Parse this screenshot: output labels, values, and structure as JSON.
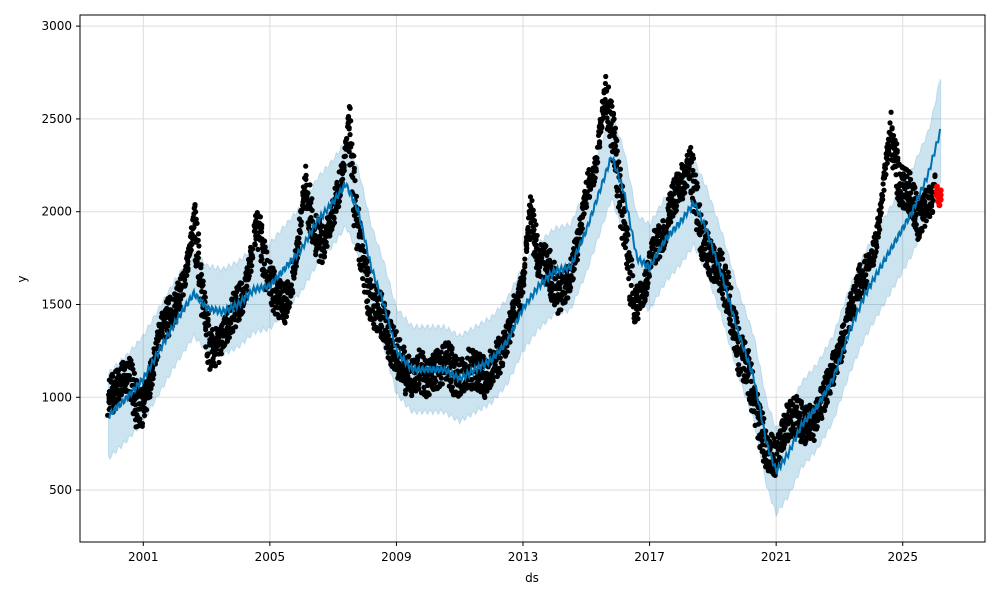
{
  "chart_data": {
    "type": "line",
    "title": "",
    "xlabel": "ds",
    "ylabel": "y",
    "xlim": [
      1999.0,
      2027.6
    ],
    "ylim": [
      220,
      3060
    ],
    "xticks": [
      "2001",
      "2005",
      "2009",
      "2013",
      "2017",
      "2021",
      "2025"
    ],
    "yticks": [
      "500",
      "1000",
      "1500",
      "2000",
      "2500",
      "3000"
    ],
    "grid": true,
    "colors": {
      "observed": "#000000",
      "forecast_line": "#0072B2",
      "interval": "#0072B2",
      "future_actual": "#ff0000"
    },
    "uncertainty_halfwidth": 230,
    "yhat": [
      [
        1999.9,
        900
      ],
      [
        2000.5,
        1000
      ],
      [
        2001,
        1100
      ],
      [
        2001.5,
        1250
      ],
      [
        2002,
        1400
      ],
      [
        2002.6,
        1560
      ],
      [
        2003,
        1480
      ],
      [
        2003.5,
        1460
      ],
      [
        2004,
        1500
      ],
      [
        2004.5,
        1580
      ],
      [
        2005,
        1600
      ],
      [
        2005.5,
        1700
      ],
      [
        2006,
        1800
      ],
      [
        2006.5,
        1950
      ],
      [
        2007,
        2050
      ],
      [
        2007.4,
        2150
      ],
      [
        2007.8,
        2000
      ],
      [
        2008.2,
        1700
      ],
      [
        2008.6,
        1500
      ],
      [
        2009,
        1250
      ],
      [
        2009.5,
        1150
      ],
      [
        2010,
        1150
      ],
      [
        2010.5,
        1150
      ],
      [
        2011,
        1100
      ],
      [
        2011.5,
        1150
      ],
      [
        2012,
        1200
      ],
      [
        2012.5,
        1300
      ],
      [
        2013,
        1480
      ],
      [
        2013.5,
        1600
      ],
      [
        2014,
        1680
      ],
      [
        2014.5,
        1700
      ],
      [
        2015,
        1900
      ],
      [
        2015.5,
        2150
      ],
      [
        2015.8,
        2300
      ],
      [
        2016.2,
        2100
      ],
      [
        2016.6,
        1750
      ],
      [
        2017,
        1700
      ],
      [
        2017.5,
        1850
      ],
      [
        2018,
        1950
      ],
      [
        2018.4,
        2050
      ],
      [
        2018.8,
        1900
      ],
      [
        2019.3,
        1650
      ],
      [
        2019.8,
        1350
      ],
      [
        2020.3,
        1100
      ],
      [
        2020.7,
        750
      ],
      [
        2021,
        600
      ],
      [
        2021.4,
        700
      ],
      [
        2021.8,
        850
      ],
      [
        2022.3,
        950
      ],
      [
        2022.8,
        1100
      ],
      [
        2023.3,
        1350
      ],
      [
        2023.8,
        1550
      ],
      [
        2024.3,
        1700
      ],
      [
        2024.8,
        1850
      ],
      [
        2025.3,
        2000
      ],
      [
        2025.8,
        2200
      ],
      [
        2026.2,
        2440
      ]
    ],
    "observed": [
      [
        1999.9,
        1000
      ],
      [
        2000.2,
        1050
      ],
      [
        2000.4,
        1150
      ],
      [
        2000.6,
        1100
      ],
      [
        2000.8,
        950
      ],
      [
        2001.0,
        950
      ],
      [
        2001.3,
        1150
      ],
      [
        2001.6,
        1400
      ],
      [
        2001.9,
        1450
      ],
      [
        2002.3,
        1600
      ],
      [
        2002.6,
        1950
      ],
      [
        2002.9,
        1500
      ],
      [
        2003.1,
        1250
      ],
      [
        2003.5,
        1300
      ],
      [
        2003.8,
        1450
      ],
      [
        2004.2,
        1550
      ],
      [
        2004.6,
        1950
      ],
      [
        2004.9,
        1650
      ],
      [
        2005.2,
        1550
      ],
      [
        2005.5,
        1500
      ],
      [
        2005.8,
        1700
      ],
      [
        2006.1,
        2150
      ],
      [
        2006.4,
        1900
      ],
      [
        2006.7,
        1800
      ],
      [
        2007.0,
        2000
      ],
      [
        2007.3,
        2200
      ],
      [
        2007.5,
        2500
      ],
      [
        2007.7,
        2000
      ],
      [
        2007.9,
        1750
      ],
      [
        2008.2,
        1500
      ],
      [
        2008.5,
        1450
      ],
      [
        2008.8,
        1300
      ],
      [
        2009.1,
        1200
      ],
      [
        2009.4,
        1100
      ],
      [
        2009.7,
        1150
      ],
      [
        2010.0,
        1100
      ],
      [
        2010.3,
        1150
      ],
      [
        2010.6,
        1200
      ],
      [
        2010.9,
        1100
      ],
      [
        2011.2,
        1150
      ],
      [
        2011.5,
        1150
      ],
      [
        2011.8,
        1100
      ],
      [
        2012.1,
        1200
      ],
      [
        2012.4,
        1250
      ],
      [
        2012.7,
        1450
      ],
      [
        2013.0,
        1600
      ],
      [
        2013.2,
        2000
      ],
      [
        2013.5,
        1750
      ],
      [
        2013.8,
        1700
      ],
      [
        2014.1,
        1550
      ],
      [
        2014.4,
        1600
      ],
      [
        2014.7,
        1800
      ],
      [
        2015.0,
        2100
      ],
      [
        2015.3,
        2250
      ],
      [
        2015.6,
        2650
      ],
      [
        2015.9,
        2350
      ],
      [
        2016.2,
        1900
      ],
      [
        2016.5,
        1500
      ],
      [
        2016.8,
        1550
      ],
      [
        2017.1,
        1800
      ],
      [
        2017.4,
        1850
      ],
      [
        2017.7,
        2050
      ],
      [
        2018.0,
        2150
      ],
      [
        2018.3,
        2250
      ],
      [
        2018.6,
        1900
      ],
      [
        2018.9,
        1750
      ],
      [
        2019.2,
        1700
      ],
      [
        2019.5,
        1550
      ],
      [
        2019.8,
        1250
      ],
      [
        2020.1,
        1150
      ],
      [
        2020.4,
        900
      ],
      [
        2020.7,
        700
      ],
      [
        2021.0,
        680
      ],
      [
        2021.3,
        850
      ],
      [
        2021.6,
        900
      ],
      [
        2021.9,
        850
      ],
      [
        2022.2,
        850
      ],
      [
        2022.5,
        1000
      ],
      [
        2022.8,
        1150
      ],
      [
        2023.1,
        1300
      ],
      [
        2023.4,
        1500
      ],
      [
        2023.7,
        1650
      ],
      [
        2024.0,
        1700
      ],
      [
        2024.3,
        2000
      ],
      [
        2024.6,
        2450
      ],
      [
        2024.9,
        2150
      ],
      [
        2025.2,
        2100
      ],
      [
        2025.5,
        1950
      ],
      [
        2025.8,
        2050
      ],
      [
        2026.0,
        2100
      ]
    ],
    "future_actual": [
      [
        2026.08,
        2110
      ],
      [
        2026.12,
        2080
      ],
      [
        2026.16,
        2060
      ],
      [
        2026.2,
        2090
      ]
    ]
  }
}
